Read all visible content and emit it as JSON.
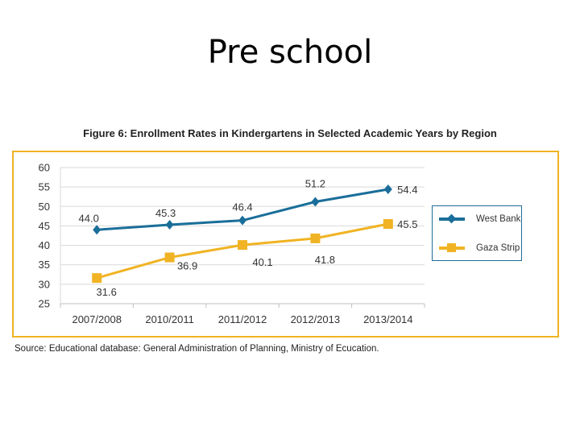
{
  "slide_title": "Pre school",
  "source": "Source: Educational database: General Administration of Planning, Ministry of Ecucation.",
  "colors": {
    "west_bank": "#1a6e99",
    "gaza_strip": "#f0b323",
    "frame": "#f0b323",
    "grid": "#d9d9d9"
  },
  "chart_data": {
    "type": "line",
    "title": "Figure 6: Enrollment Rates in Kindergartens in Selected Academic Years by Region",
    "xlabel": "",
    "ylabel": "",
    "categories": [
      "2007/2008",
      "2010/2011",
      "2011/2012",
      "2012/2013",
      "2013/2014"
    ],
    "ylim": [
      25,
      60
    ],
    "yticks": [
      "25",
      "30",
      "35",
      "40",
      "45",
      "50",
      "55",
      "60"
    ],
    "grid": true,
    "legend_position": "right",
    "series": [
      {
        "name": "West Bank",
        "marker": "diamond",
        "values": [
          44.0,
          45.3,
          46.4,
          51.2,
          54.4
        ],
        "labels": [
          "44.0",
          "45.3",
          "46.4",
          "51.2",
          "54.4"
        ]
      },
      {
        "name": "Gaza Strip",
        "marker": "square",
        "values": [
          31.6,
          36.9,
          40.1,
          41.8,
          45.5
        ],
        "labels": [
          "31.6",
          "36.9",
          "40.1",
          "41.8",
          "45.5"
        ]
      }
    ]
  }
}
